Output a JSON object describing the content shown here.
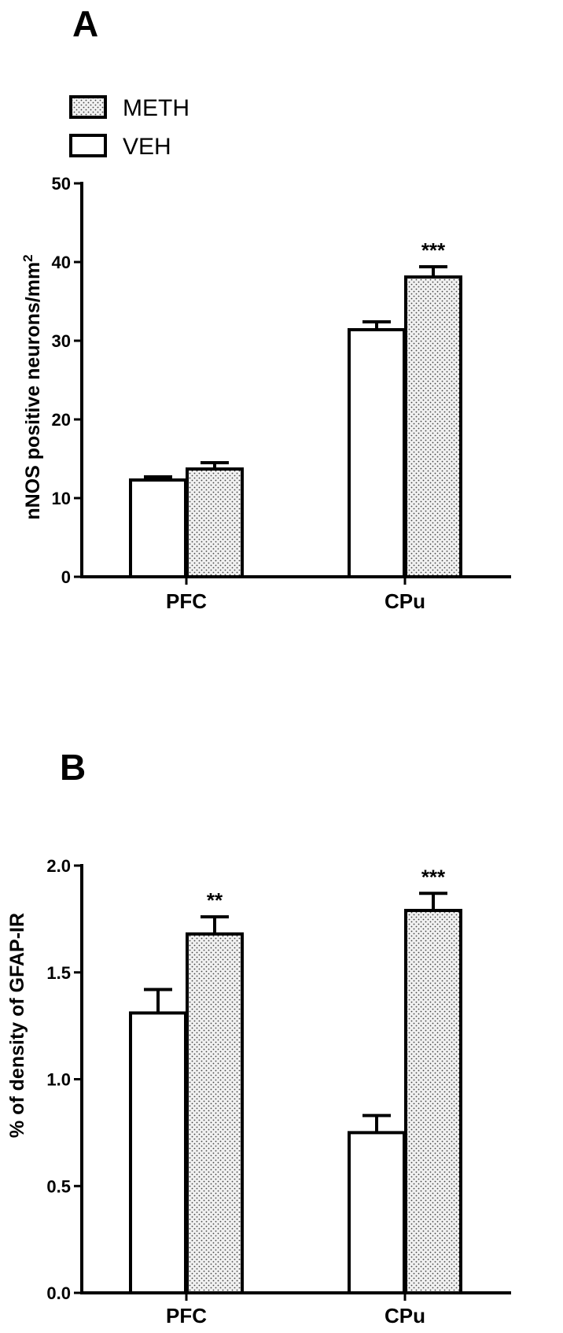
{
  "colors": {
    "meth_fill": "dotted-gray",
    "veh_fill": "#ffffff",
    "stroke": "#000000"
  },
  "legend": [
    {
      "label": "METH",
      "pattern": "dots"
    },
    {
      "label": "VEH",
      "pattern": "empty"
    }
  ],
  "chart_data": [
    {
      "panel": "A",
      "type": "bar",
      "categories": [
        "PFC",
        "CPu"
      ],
      "ylabel": "nNOS positive neurons/mm",
      "ylabel_superscript": "2",
      "ylim": [
        0,
        50
      ],
      "yticks": [
        "0",
        "10",
        "20",
        "30",
        "40",
        "50"
      ],
      "tick_values": [
        0,
        10,
        20,
        30,
        40,
        50
      ],
      "grid": false,
      "series": [
        {
          "name": "VEH",
          "values": [
            12.3,
            31.4
          ],
          "errors": [
            0.4,
            1.0
          ],
          "significance": [
            "",
            ""
          ]
        },
        {
          "name": "METH",
          "values": [
            13.7,
            38.1
          ],
          "errors": [
            0.8,
            1.3
          ],
          "significance": [
            "",
            "***"
          ]
        }
      ]
    },
    {
      "panel": "B",
      "type": "bar",
      "categories": [
        "PFC",
        "CPu"
      ],
      "ylabel": "% of density of GFAP-IR",
      "ylim": [
        0,
        2.0
      ],
      "yticks": [
        "0.0",
        "0.5",
        "1.0",
        "1.5",
        "2.0"
      ],
      "tick_values": [
        0,
        0.5,
        1.0,
        1.5,
        2.0
      ],
      "grid": false,
      "series": [
        {
          "name": "VEH",
          "values": [
            1.31,
            0.75
          ],
          "errors": [
            0.11,
            0.08
          ],
          "significance": [
            "",
            ""
          ]
        },
        {
          "name": "METH",
          "values": [
            1.68,
            1.79
          ],
          "errors": [
            0.08,
            0.08
          ],
          "significance": [
            "**",
            "***"
          ]
        }
      ]
    }
  ]
}
